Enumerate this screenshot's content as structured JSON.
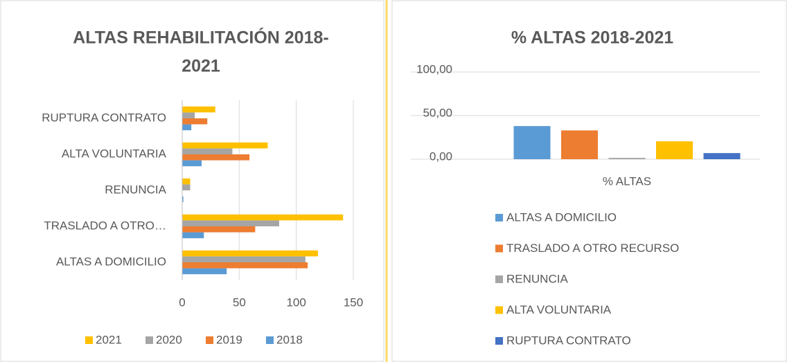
{
  "chart_data": [
    {
      "type": "hbar",
      "title": [
        "ALTAS REHABILITACIÓN 2018-",
        "2021"
      ],
      "categories": [
        "ALTAS A DOMICILIO",
        "TRASLADO A OTRO…",
        "RENUNCIA",
        "ALTA VOLUNTARIA",
        "RUPTURA CONTRATO"
      ],
      "series": [
        {
          "name": "2018",
          "color": "#5b9bd5",
          "values": [
            39,
            19,
            1,
            17,
            8
          ]
        },
        {
          "name": "2019",
          "color": "#ed7d31",
          "values": [
            110,
            64,
            0,
            59,
            22
          ]
        },
        {
          "name": "2020",
          "color": "#a5a5a5",
          "values": [
            108,
            85,
            7,
            44,
            11
          ]
        },
        {
          "name": "2021",
          "color": "#ffc000",
          "values": [
            119,
            141,
            7,
            75,
            29
          ]
        }
      ],
      "xlim": [
        0,
        150
      ],
      "xticks": [
        0,
        50,
        100,
        150
      ],
      "grid": true,
      "legend": "bottom"
    },
    {
      "type": "bar",
      "title": "% ALTAS 2018-2021",
      "categories": [
        "% ALTAS"
      ],
      "series": [
        {
          "name": "ALTAS A DOMICILIO",
          "color": "#5b9bd5",
          "values": [
            38
          ]
        },
        {
          "name": "TRASLADO A OTRO RECURSO",
          "color": "#ed7d31",
          "values": [
            33
          ]
        },
        {
          "name": "RENUNCIA",
          "color": "#a5a5a5",
          "values": [
            1.5
          ]
        },
        {
          "name": "ALTA VOLUNTARIA",
          "color": "#ffc000",
          "values": [
            20.5
          ]
        },
        {
          "name": "RUPTURA CONTRATO",
          "color": "#4472c4",
          "values": [
            7
          ]
        }
      ],
      "ylim": [
        0,
        100
      ],
      "yticks": [
        {
          "value": 0,
          "label": "0,00"
        },
        {
          "value": 50,
          "label": "50,00"
        },
        {
          "value": 100,
          "label": "100,00"
        }
      ],
      "grid": true,
      "legend": "bottom"
    }
  ]
}
